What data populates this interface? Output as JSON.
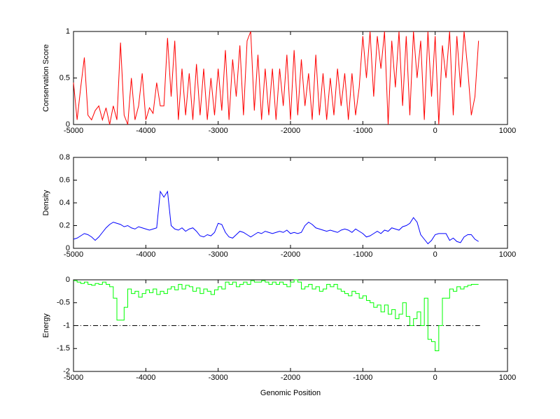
{
  "chart_data": [
    {
      "type": "line",
      "ylabel": "Conservation Score",
      "x": [
        -5000,
        -4950,
        -4900,
        -4850,
        -4800,
        -4750,
        -4700,
        -4650,
        -4600,
        -4550,
        -4500,
        -4450,
        -4400,
        -4350,
        -4300,
        -4250,
        -4200,
        -4150,
        -4100,
        -4050,
        -4000,
        -3950,
        -3900,
        -3850,
        -3800,
        -3750,
        -3700,
        -3650,
        -3600,
        -3550,
        -3500,
        -3450,
        -3400,
        -3350,
        -3300,
        -3250,
        -3200,
        -3150,
        -3100,
        -3050,
        -3000,
        -2950,
        -2900,
        -2850,
        -2800,
        -2750,
        -2700,
        -2650,
        -2600,
        -2550,
        -2500,
        -2450,
        -2400,
        -2350,
        -2300,
        -2250,
        -2200,
        -2150,
        -2100,
        -2050,
        -2000,
        -1950,
        -1900,
        -1850,
        -1800,
        -1750,
        -1700,
        -1650,
        -1600,
        -1550,
        -1500,
        -1450,
        -1400,
        -1350,
        -1300,
        -1250,
        -1200,
        -1150,
        -1100,
        -1050,
        -1000,
        -950,
        -900,
        -850,
        -800,
        -750,
        -700,
        -650,
        -600,
        -550,
        -500,
        -450,
        -400,
        -350,
        -300,
        -250,
        -200,
        -150,
        -100,
        -50,
        0,
        50,
        100,
        150,
        200,
        250,
        300,
        350,
        400,
        450,
        500,
        550,
        600
      ],
      "series": [
        {
          "color": "#ff0000",
          "values": [
            0.45,
            0.05,
            0.4,
            0.72,
            0.1,
            0.05,
            0.15,
            0.2,
            0.05,
            0.18,
            0.0,
            0.2,
            0.05,
            0.88,
            0.1,
            0.0,
            0.5,
            0.05,
            0.2,
            0.55,
            0.05,
            0.18,
            0.12,
            0.45,
            0.2,
            0.2,
            0.93,
            0.3,
            0.9,
            0.05,
            0.6,
            0.1,
            0.55,
            0.05,
            0.65,
            0.1,
            0.6,
            0.05,
            0.5,
            0.1,
            0.6,
            0.15,
            0.8,
            0.05,
            0.7,
            0.3,
            0.85,
            0.1,
            0.9,
            1.0,
            0.15,
            0.75,
            0.05,
            0.6,
            0.1,
            0.6,
            0.05,
            0.6,
            0.2,
            0.75,
            0.05,
            0.8,
            0.1,
            0.7,
            0.2,
            0.55,
            0.05,
            0.75,
            0.1,
            0.55,
            0.05,
            0.5,
            0.1,
            0.6,
            0.2,
            0.55,
            0.05,
            0.55,
            0.1,
            0.4,
            0.95,
            0.5,
            1.0,
            0.3,
            0.95,
            0.6,
            1.0,
            0.0,
            0.9,
            0.4,
            1.0,
            0.2,
            0.95,
            0.1,
            1.0,
            0.5,
            0.9,
            0.05,
            1.0,
            0.3,
            0.95,
            0.0,
            0.85,
            0.5,
            1.0,
            0.1,
            0.95,
            0.4,
            1.0,
            0.6,
            0.1,
            0.3,
            0.9
          ]
        }
      ],
      "xlim": [
        -5000,
        1000
      ],
      "xticks": [
        -5000,
        -4000,
        -3000,
        -2000,
        -1000,
        0,
        1000
      ],
      "ylim": [
        0,
        1
      ],
      "yticks": [
        0,
        0.5,
        1
      ]
    },
    {
      "type": "line",
      "ylabel": "Density",
      "x": [
        -5000,
        -4950,
        -4900,
        -4850,
        -4800,
        -4750,
        -4700,
        -4650,
        -4600,
        -4550,
        -4500,
        -4450,
        -4400,
        -4350,
        -4300,
        -4250,
        -4200,
        -4150,
        -4100,
        -4050,
        -4000,
        -3950,
        -3900,
        -3850,
        -3800,
        -3750,
        -3700,
        -3650,
        -3600,
        -3550,
        -3500,
        -3450,
        -3400,
        -3350,
        -3300,
        -3250,
        -3200,
        -3150,
        -3100,
        -3050,
        -3000,
        -2950,
        -2900,
        -2850,
        -2800,
        -2750,
        -2700,
        -2650,
        -2600,
        -2550,
        -2500,
        -2450,
        -2400,
        -2350,
        -2300,
        -2250,
        -2200,
        -2150,
        -2100,
        -2050,
        -2000,
        -1950,
        -1900,
        -1850,
        -1800,
        -1750,
        -1700,
        -1650,
        -1600,
        -1550,
        -1500,
        -1450,
        -1400,
        -1350,
        -1300,
        -1250,
        -1200,
        -1150,
        -1100,
        -1050,
        -1000,
        -950,
        -900,
        -850,
        -800,
        -750,
        -700,
        -650,
        -600,
        -550,
        -500,
        -450,
        -400,
        -350,
        -300,
        -250,
        -200,
        -150,
        -100,
        -50,
        0,
        50,
        100,
        150,
        200,
        250,
        300,
        350,
        400,
        450,
        500,
        550,
        600
      ],
      "series": [
        {
          "color": "#0000ff",
          "values": [
            0.08,
            0.09,
            0.11,
            0.13,
            0.12,
            0.1,
            0.07,
            0.1,
            0.14,
            0.18,
            0.21,
            0.23,
            0.22,
            0.21,
            0.19,
            0.2,
            0.18,
            0.17,
            0.19,
            0.18,
            0.17,
            0.16,
            0.17,
            0.18,
            0.5,
            0.45,
            0.5,
            0.2,
            0.17,
            0.16,
            0.18,
            0.15,
            0.17,
            0.18,
            0.15,
            0.11,
            0.1,
            0.12,
            0.11,
            0.14,
            0.22,
            0.21,
            0.14,
            0.1,
            0.09,
            0.12,
            0.15,
            0.14,
            0.12,
            0.1,
            0.12,
            0.14,
            0.13,
            0.15,
            0.14,
            0.13,
            0.14,
            0.15,
            0.14,
            0.16,
            0.13,
            0.14,
            0.13,
            0.14,
            0.2,
            0.23,
            0.21,
            0.18,
            0.17,
            0.16,
            0.15,
            0.16,
            0.15,
            0.14,
            0.16,
            0.17,
            0.16,
            0.14,
            0.17,
            0.15,
            0.13,
            0.1,
            0.11,
            0.13,
            0.15,
            0.13,
            0.16,
            0.15,
            0.18,
            0.17,
            0.16,
            0.19,
            0.2,
            0.22,
            0.27,
            0.23,
            0.12,
            0.08,
            0.04,
            0.07,
            0.12,
            0.13,
            0.13,
            0.13,
            0.07,
            0.09,
            0.06,
            0.05,
            0.1,
            0.12,
            0.12,
            0.08,
            0.06
          ]
        }
      ],
      "xlim": [
        -5000,
        1000
      ],
      "xticks": [
        -5000,
        -4000,
        -3000,
        -2000,
        -1000,
        0,
        1000
      ],
      "ylim": [
        0,
        0.8
      ],
      "yticks": [
        0,
        0.2,
        0.4,
        0.6,
        0.8
      ]
    },
    {
      "type": "step",
      "ylabel": "Energy",
      "xlabel": "Genomic Position",
      "x": [
        -5000,
        -4950,
        -4900,
        -4850,
        -4800,
        -4750,
        -4700,
        -4650,
        -4600,
        -4550,
        -4500,
        -4450,
        -4400,
        -4350,
        -4300,
        -4250,
        -4200,
        -4150,
        -4100,
        -4050,
        -4000,
        -3950,
        -3900,
        -3850,
        -3800,
        -3750,
        -3700,
        -3650,
        -3600,
        -3550,
        -3500,
        -3450,
        -3400,
        -3350,
        -3300,
        -3250,
        -3200,
        -3150,
        -3100,
        -3050,
        -3000,
        -2950,
        -2900,
        -2850,
        -2800,
        -2750,
        -2700,
        -2650,
        -2600,
        -2550,
        -2500,
        -2450,
        -2400,
        -2350,
        -2300,
        -2250,
        -2200,
        -2150,
        -2100,
        -2050,
        -2000,
        -1950,
        -1900,
        -1850,
        -1800,
        -1750,
        -1700,
        -1650,
        -1600,
        -1550,
        -1500,
        -1450,
        -1400,
        -1350,
        -1300,
        -1250,
        -1200,
        -1150,
        -1100,
        -1050,
        -1000,
        -950,
        -900,
        -850,
        -800,
        -750,
        -700,
        -650,
        -600,
        -550,
        -500,
        -450,
        -400,
        -350,
        -300,
        -250,
        -200,
        -150,
        -100,
        -50,
        0,
        50,
        100,
        150,
        200,
        250,
        300,
        350,
        400,
        450,
        500,
        550,
        600
      ],
      "series": [
        {
          "color": "#00ff00",
          "values": [
            -0.02,
            -0.05,
            -0.08,
            -0.05,
            -0.1,
            -0.12,
            -0.08,
            -0.1,
            -0.05,
            -0.1,
            -0.15,
            -0.4,
            -0.88,
            -0.88,
            -0.6,
            -0.2,
            -0.3,
            -0.25,
            -0.38,
            -0.3,
            -0.22,
            -0.28,
            -0.2,
            -0.32,
            -0.25,
            -0.3,
            -0.2,
            -0.15,
            -0.22,
            -0.1,
            -0.2,
            -0.12,
            -0.15,
            -0.25,
            -0.18,
            -0.3,
            -0.2,
            -0.25,
            -0.32,
            -0.22,
            -0.15,
            -0.2,
            -0.05,
            -0.1,
            -0.05,
            -0.15,
            -0.1,
            -0.05,
            -0.1,
            -0.02,
            -0.05,
            -0.05,
            -0.02,
            -0.05,
            -0.1,
            -0.05,
            -0.1,
            -0.05,
            -0.1,
            -0.15,
            -0.05,
            0,
            -0.05,
            -0.2,
            -0.15,
            -0.1,
            -0.2,
            -0.15,
            -0.25,
            -0.2,
            -0.1,
            -0.15,
            -0.1,
            -0.2,
            -0.25,
            -0.3,
            -0.35,
            -0.25,
            -0.3,
            -0.4,
            -0.35,
            -0.45,
            -0.5,
            -0.6,
            -0.55,
            -0.7,
            -0.55,
            -0.75,
            -0.65,
            -0.85,
            -0.75,
            -0.5,
            -0.8,
            -1.0,
            -0.85,
            -0.7,
            -1.0,
            -0.4,
            -1.3,
            -1.35,
            -1.55,
            -1.0,
            -0.4,
            -0.4,
            -0.2,
            -0.25,
            -0.15,
            -0.2,
            -0.15,
            -0.12,
            -0.1,
            -0.1,
            -0.1
          ]
        }
      ],
      "hline": {
        "y": -1,
        "x": [
          -5000,
          620
        ],
        "color": "#000000"
      },
      "xlim": [
        -5000,
        1000
      ],
      "xticks": [
        -5000,
        -4000,
        -3000,
        -2000,
        -1000,
        0,
        1000
      ],
      "ylim": [
        -2,
        0
      ],
      "yticks": [
        -2,
        -1.5,
        -1,
        -0.5,
        0
      ]
    }
  ]
}
